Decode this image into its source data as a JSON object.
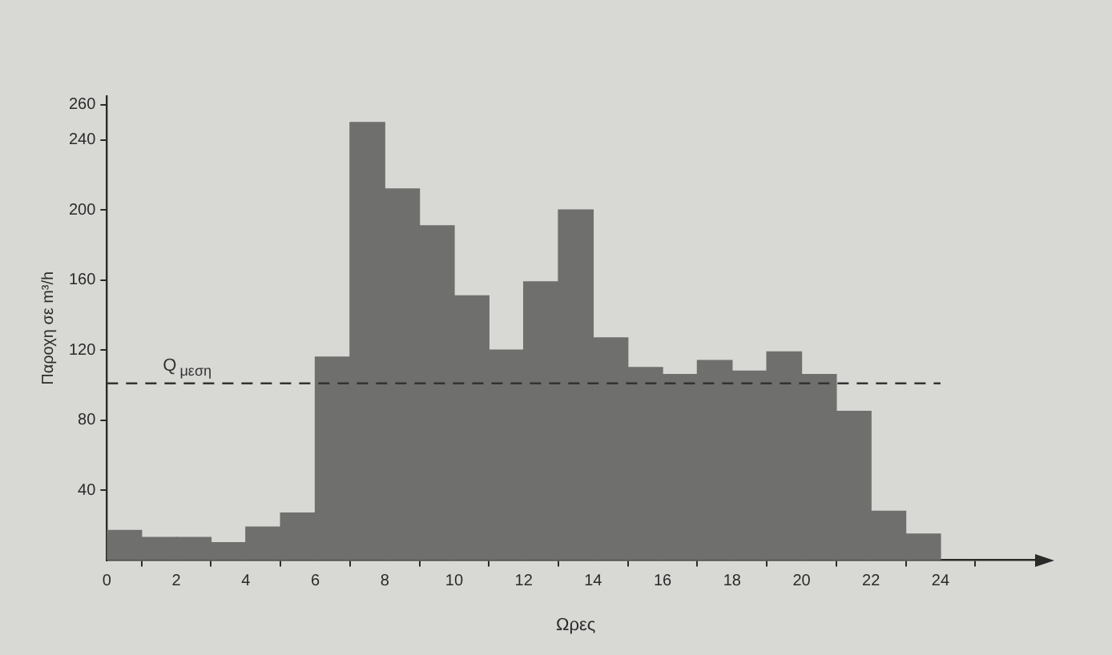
{
  "chart_data": {
    "type": "histogram",
    "xlabel": "Ωρες",
    "ylabel": "Παροχη σε m³/h",
    "bins": [
      0,
      1,
      2,
      3,
      4,
      5,
      6,
      7,
      8,
      9,
      10,
      11,
      12,
      13,
      14,
      15,
      16,
      17,
      18,
      19,
      20,
      21,
      22,
      23,
      24
    ],
    "values": [
      17,
      13,
      13,
      10,
      19,
      27,
      116,
      250,
      212,
      191,
      151,
      120,
      159,
      200,
      127,
      110,
      106,
      114,
      108,
      119,
      106,
      85,
      28,
      15
    ],
    "color": "#6f6f6d",
    "xlim": [
      0,
      27
    ],
    "xticks": [
      0,
      2,
      4,
      6,
      8,
      10,
      12,
      14,
      16,
      18,
      20,
      22,
      24
    ],
    "ylim": [
      0,
      265
    ],
    "yticks": [
      40,
      80,
      120,
      160,
      200,
      240,
      260
    ],
    "ref_lines": [
      {
        "axis": "y",
        "value": 101,
        "label": "Q$_{μεση}$",
        "line_style": "dashed",
        "color": "#333333"
      }
    ],
    "grid": false,
    "legend": false
  }
}
